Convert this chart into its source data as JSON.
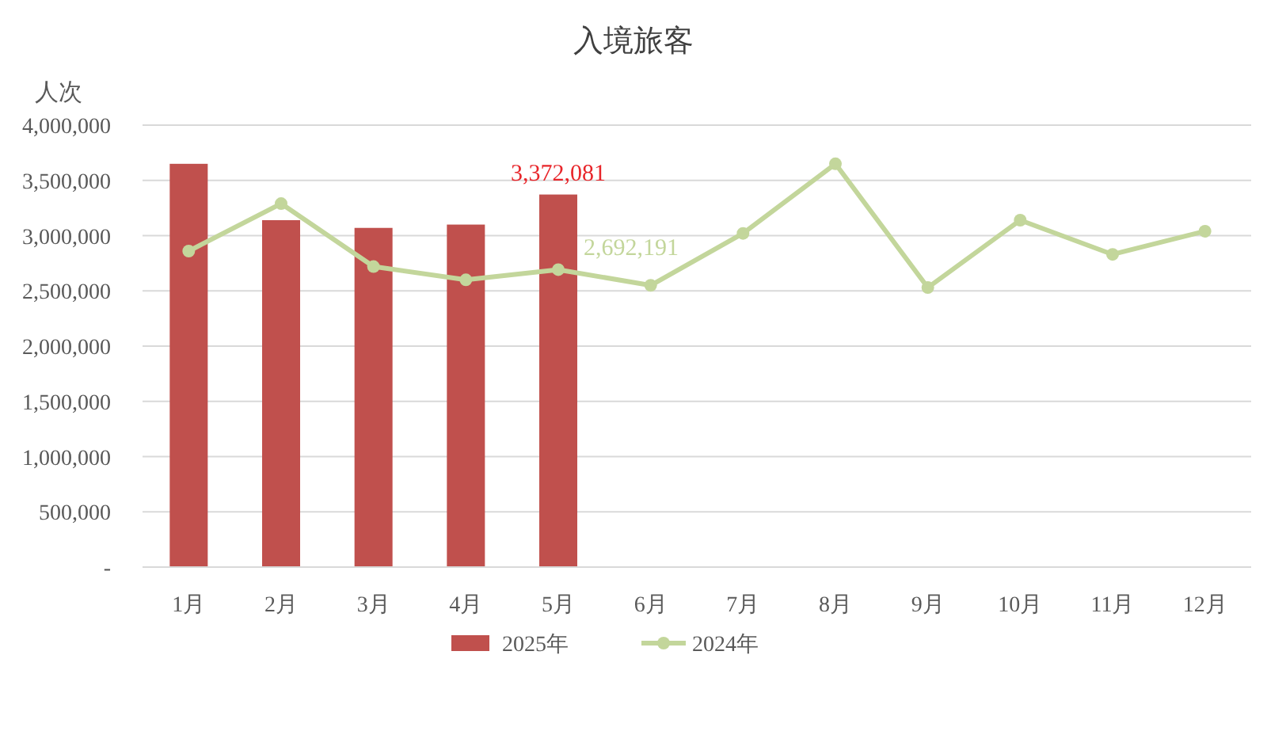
{
  "chart_data": {
    "type": "bar",
    "title": "入境旅客",
    "ylabel": "人次",
    "categories": [
      "1月",
      "2月",
      "3月",
      "4月",
      "5月",
      "6月",
      "7月",
      "8月",
      "9月",
      "10月",
      "11月",
      "12月"
    ],
    "series": [
      {
        "name": "2025年",
        "color": "#c0504d",
        "values": [
          3650000,
          3140000,
          3070000,
          3100000,
          3372081,
          null,
          null,
          null,
          null,
          null,
          null,
          null
        ],
        "value_labels": [
          null,
          null,
          null,
          null,
          "3,372,081",
          null,
          null,
          null,
          null,
          null,
          null,
          null
        ]
      },
      {
        "name": "2024年",
        "type": "line",
        "color": "#c3d69b",
        "marker": "circle",
        "values": [
          2860000,
          3290000,
          2720000,
          2600000,
          2692191,
          2550000,
          3020000,
          3650000,
          2530000,
          3140000,
          2830000,
          3040000
        ],
        "value_labels": [
          null,
          null,
          null,
          null,
          "2,692,191",
          null,
          null,
          null,
          null,
          null,
          null,
          null
        ]
      }
    ],
    "ylim": [
      0,
      4000000
    ],
    "yticks": [
      {
        "value": 0,
        "label": "-"
      },
      {
        "value": 500000,
        "label": "500,000"
      },
      {
        "value": 1000000,
        "label": "1,000,000"
      },
      {
        "value": 1500000,
        "label": "1,500,000"
      },
      {
        "value": 2000000,
        "label": "2,000,000"
      },
      {
        "value": 2500000,
        "label": "2,500,000"
      },
      {
        "value": 3000000,
        "label": "3,000,000"
      },
      {
        "value": 3500000,
        "label": "3,500,000"
      },
      {
        "value": 4000000,
        "label": "4,000,000"
      }
    ],
    "grid": "y",
    "legend": "bottom"
  }
}
